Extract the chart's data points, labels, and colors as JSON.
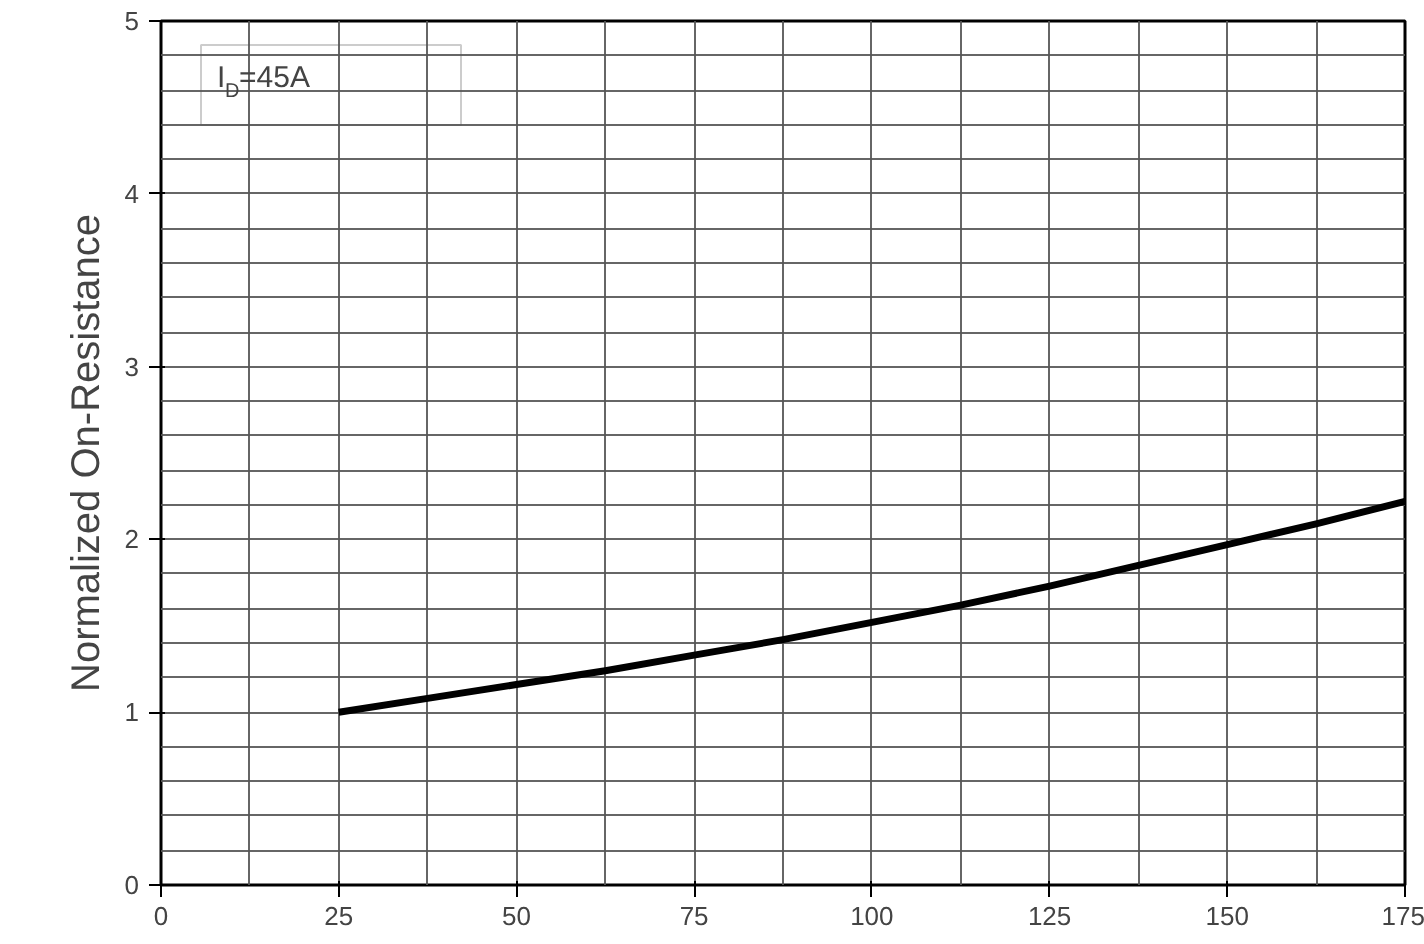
{
  "chart_data": {
    "type": "line",
    "ylabel": "Normalized On-Resistance",
    "annotations": [
      "I$_{D}$=45A"
    ],
    "x": [
      25,
      37.5,
      50,
      62.5,
      75,
      87.5,
      100,
      112.5,
      125,
      137.5,
      150,
      162.5,
      175
    ],
    "series": [
      {
        "color": "#000000",
        "values": [
          1.0,
          1.08,
          1.16,
          1.24,
          1.33,
          1.42,
          1.52,
          1.62,
          1.73,
          1.85,
          1.97,
          2.09,
          2.22
        ]
      }
    ],
    "xlim": [
      0,
      175
    ],
    "ylim": [
      0,
      5
    ],
    "xticks": [
      0,
      25,
      50,
      75,
      100,
      125,
      150,
      175
    ],
    "yticks": [
      0,
      1,
      2,
      3,
      4,
      5
    ],
    "grid": true,
    "marker": "none",
    "line_style": "solid"
  }
}
